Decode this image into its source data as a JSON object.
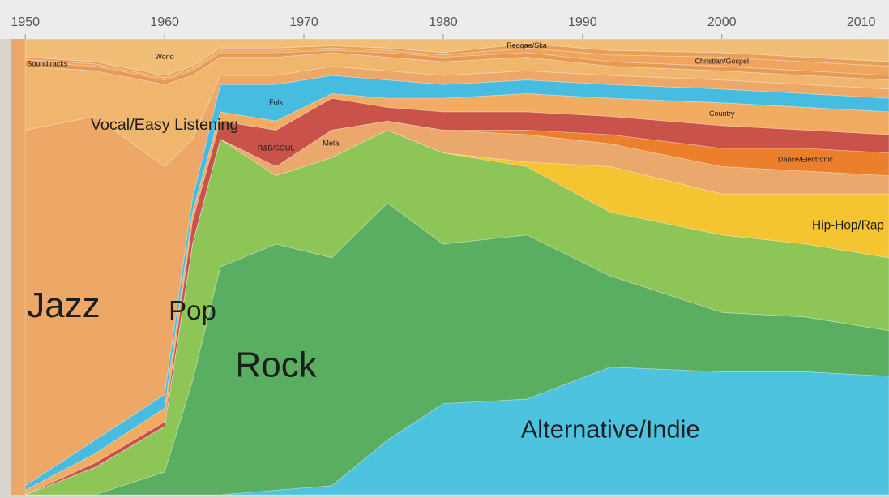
{
  "chart_data": {
    "type": "area",
    "stacked": true,
    "x": [
      1950,
      1955,
      1960,
      1962,
      1964,
      1968,
      1972,
      1976,
      1980,
      1986,
      1992,
      2000,
      2006,
      2012
    ],
    "xlim": [
      1949,
      2012
    ],
    "xticks": [
      1950,
      1960,
      1970,
      1980,
      1990,
      2000,
      2010
    ],
    "ylim": [
      0,
      100
    ],
    "series": [
      {
        "name": "Alternative/Indie",
        "color": "#4ec3e0",
        "values": [
          0,
          0,
          0,
          0,
          0,
          1,
          2,
          12,
          20,
          21,
          28,
          27,
          27,
          26
        ]
      },
      {
        "name": "Rock",
        "color": "#5aae61",
        "values": [
          0,
          0,
          5,
          25,
          50,
          54,
          50,
          52,
          35,
          36,
          20,
          13,
          12,
          10
        ]
      },
      {
        "name": "Pop",
        "color": "#8dc556",
        "values": [
          0,
          6,
          10,
          30,
          28,
          15,
          22,
          16,
          20,
          15,
          14,
          17,
          16,
          16
        ]
      },
      {
        "name": "Hip-Hop/Rap",
        "color": "#f5c431",
        "values": [
          0,
          0,
          0,
          0,
          0,
          0,
          0,
          0,
          0,
          1,
          10,
          9,
          11,
          14
        ]
      },
      {
        "name": "Metal",
        "color": "#eaa86c",
        "values": [
          0,
          0,
          0,
          0,
          0,
          2,
          6,
          2,
          5,
          6,
          5,
          6,
          5,
          4
        ]
      },
      {
        "name": "Dance/Electronic",
        "color": "#ec7f2c",
        "values": [
          0,
          0,
          0,
          0,
          0,
          0,
          0,
          0,
          0,
          1,
          2,
          4,
          5,
          5
        ]
      },
      {
        "name": "R&B/SOUL",
        "color": "#c9524b",
        "values": [
          0,
          1,
          1,
          5,
          4,
          8,
          7,
          3,
          4,
          4,
          4,
          5,
          4,
          4
        ]
      },
      {
        "name": "Country",
        "color": "#f2ac61",
        "values": [
          1,
          2,
          3,
          2,
          2,
          2,
          1,
          2,
          3,
          4,
          4,
          5,
          5,
          5
        ]
      },
      {
        "name": "Folk",
        "color": "#46bde0",
        "values": [
          1,
          3,
          3,
          3,
          6,
          8,
          4,
          4,
          3,
          3,
          3,
          3,
          3,
          3
        ]
      },
      {
        "name": "Jazz",
        "color": "#eda868",
        "values": [
          78,
          71,
          50,
          13,
          2,
          2,
          2,
          2,
          2,
          2,
          2,
          2,
          2,
          2
        ]
      },
      {
        "name": "Vocal/Easy Listening",
        "color": "#f0b66e",
        "values": [
          14,
          10,
          18,
          14,
          4,
          4,
          3,
          3,
          3,
          3,
          2,
          2,
          2,
          2
        ]
      },
      {
        "name": "Soundtracks",
        "color": "#e59a55",
        "values": [
          1,
          1,
          1,
          1,
          1,
          1,
          0.5,
          1,
          1,
          1,
          1,
          1,
          1,
          1
        ]
      },
      {
        "name": "Christian/Gospel",
        "color": "#f0a55e",
        "values": [
          0.5,
          0.5,
          0.5,
          0.5,
          0.5,
          0.5,
          0.5,
          0.5,
          0.5,
          1,
          1.5,
          2,
          2,
          2
        ]
      },
      {
        "name": "Reggae/Ska",
        "color": "#e8a058",
        "values": [
          0.5,
          0.5,
          0.5,
          0.5,
          0.5,
          0.5,
          0.5,
          0.5,
          0.5,
          1,
          1,
          1,
          1,
          1
        ]
      },
      {
        "name": "World",
        "color": "#f1be78",
        "values": [
          4,
          5,
          8,
          6,
          2,
          2,
          1.5,
          2,
          3,
          1,
          2.5,
          3,
          4,
          5
        ]
      }
    ]
  }
}
